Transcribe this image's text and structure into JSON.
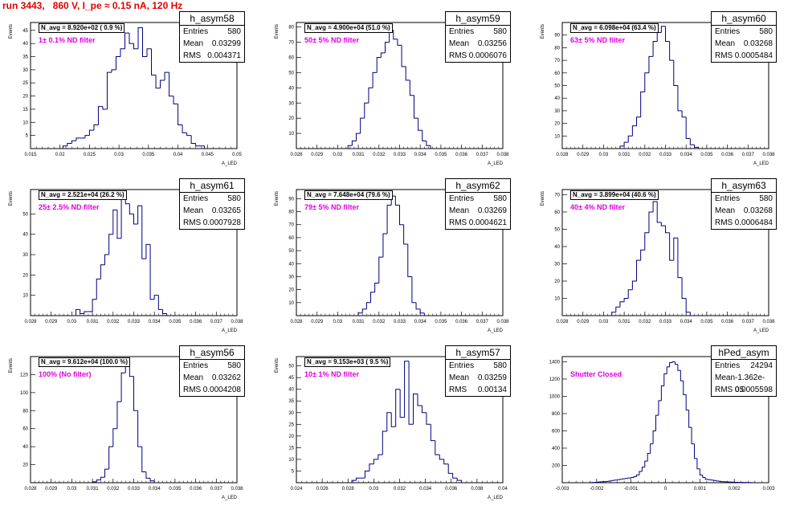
{
  "page": {
    "title": "run 3443,   860 V, I_pe ≈ 0.15 nA, 120 Hz"
  },
  "chart_data": [
    {
      "type": "bar",
      "name": "h_asym58",
      "stats": {
        "entries_label": "Entries",
        "entries": "580",
        "mean_label": "Mean",
        "mean": "0.03299",
        "rms_label": "RMS",
        "rms": "0.004371"
      },
      "n_avg": "N_avg = 8.920e+02 ( 0.9 %)",
      "note": "1± 0.1% ND filter",
      "xlabel": "A_LED",
      "ylabel": "Events",
      "xlim": [
        0.015,
        0.05
      ],
      "ylim": [
        0,
        48
      ],
      "xticks": [
        0.015,
        0.02,
        0.025,
        0.03,
        0.035,
        0.04,
        0.045,
        0.05
      ],
      "xtick_labels": [
        "0.015",
        "0.02",
        "0.025",
        "0.03",
        "0.035",
        "0.04",
        "0.045",
        "0.05"
      ],
      "yticks": [
        5,
        10,
        15,
        20,
        25,
        30,
        35,
        40,
        45
      ],
      "ytick_labels": [
        "5",
        "10",
        "15",
        "20",
        "25",
        "30",
        "35",
        "40",
        "45"
      ],
      "bin_start": 0.0205,
      "bin_width": 0.00075,
      "values": [
        1,
        2,
        3,
        4,
        4,
        5,
        7,
        9,
        16,
        15,
        29,
        30,
        35,
        38,
        44,
        40,
        38,
        46,
        35,
        38,
        28,
        23,
        26,
        29,
        20,
        17,
        9,
        6,
        5,
        2,
        1,
        1
      ]
    },
    {
      "type": "bar",
      "name": "h_asym59",
      "stats": {
        "entries_label": "Entries",
        "entries": "580",
        "mean_label": "Mean",
        "mean": "0.03256",
        "rms_label": "RMS",
        "rms": "0.0006076"
      },
      "n_avg": "N_avg = 4.900e+04 (51.0 %)",
      "note": "50± 5% ND filter",
      "xlabel": "A_LED",
      "ylabel": "Events",
      "xlim": [
        0.028,
        0.038
      ],
      "ylim": [
        0,
        83
      ],
      "xticks": [
        0.028,
        0.029,
        0.03,
        0.031,
        0.032,
        0.033,
        0.034,
        0.035,
        0.036,
        0.037,
        0.038
      ],
      "xtick_labels": [
        "0.028",
        "0.029",
        "0.03",
        "0.031",
        "0.032",
        "0.033",
        "0.034",
        "0.035",
        "0.036",
        "0.037",
        "0.038"
      ],
      "yticks": [
        10,
        20,
        30,
        40,
        50,
        60,
        70,
        80
      ],
      "ytick_labels": [
        "10",
        "20",
        "30",
        "40",
        "50",
        "60",
        "70",
        "80"
      ],
      "bin_start": 0.0305,
      "bin_width": 0.0002,
      "values": [
        2,
        5,
        10,
        20,
        30,
        40,
        50,
        60,
        63,
        70,
        78,
        72,
        68,
        54,
        45,
        35,
        20,
        12,
        5,
        2
      ]
    },
    {
      "type": "bar",
      "name": "h_asym60",
      "stats": {
        "entries_label": "Entries",
        "entries": "580",
        "mean_label": "Mean",
        "mean": "0.03268",
        "rms_label": "RMS",
        "rms": "0.0005484"
      },
      "n_avg": "N_avg = 6.098e+04 (63.4 %)",
      "note": "63± 5% ND filter",
      "xlabel": "A_LED",
      "ylabel": "Events",
      "xlim": [
        0.028,
        0.038
      ],
      "ylim": [
        0,
        100
      ],
      "xticks": [
        0.028,
        0.029,
        0.03,
        0.031,
        0.032,
        0.033,
        0.034,
        0.035,
        0.036,
        0.037,
        0.038
      ],
      "xtick_labels": [
        "0.028",
        "0.029",
        "0.03",
        "0.031",
        "0.032",
        "0.033",
        "0.034",
        "0.035",
        "0.036",
        "0.037",
        "0.038"
      ],
      "yticks": [
        10,
        20,
        30,
        40,
        50,
        60,
        70,
        80,
        90
      ],
      "ytick_labels": [
        "10",
        "20",
        "30",
        "40",
        "50",
        "60",
        "70",
        "80",
        "90"
      ],
      "bin_start": 0.0308,
      "bin_width": 0.0002,
      "values": [
        2,
        5,
        10,
        18,
        25,
        45,
        60,
        73,
        85,
        92,
        97,
        85,
        70,
        50,
        30,
        25,
        8,
        3,
        1
      ]
    },
    {
      "type": "bar",
      "name": "h_asym61",
      "stats": {
        "entries_label": "Entries",
        "entries": "580",
        "mean_label": "Mean",
        "mean": "0.03265",
        "rms_label": "RMS",
        "rms": "0.0007928"
      },
      "n_avg": "N_avg = 2.521e+04 (26.2 %)",
      "note": "25± 2.5% ND filter",
      "xlabel": "A_LED",
      "ylabel": "Events",
      "xlim": [
        0.028,
        0.038
      ],
      "ylim": [
        0,
        62
      ],
      "xticks": [
        0.028,
        0.029,
        0.03,
        0.031,
        0.032,
        0.033,
        0.034,
        0.035,
        0.036,
        0.037,
        0.038
      ],
      "xtick_labels": [
        "0.028",
        "0.029",
        "0.03",
        "0.031",
        "0.032",
        "0.033",
        "0.034",
        "0.035",
        "0.036",
        "0.037",
        "0.038"
      ],
      "yticks": [
        10,
        20,
        30,
        40,
        50
      ],
      "ytick_labels": [
        "10",
        "20",
        "30",
        "40",
        "50"
      ],
      "bin_start": 0.0302,
      "bin_width": 0.0002,
      "values": [
        3,
        1,
        2,
        2,
        8,
        18,
        25,
        30,
        40,
        52,
        38,
        58,
        55,
        50,
        45,
        54,
        28,
        35,
        8,
        10,
        3,
        1
      ]
    },
    {
      "type": "bar",
      "name": "h_asym62",
      "stats": {
        "entries_label": "Entries",
        "entries": "580",
        "mean_label": "Mean",
        "mean": "0.03269",
        "rms_label": "RMS",
        "rms": "0.0004621"
      },
      "n_avg": "N_avg = 7.648e+04 (79.6 %)",
      "note": "79± 5% ND filter",
      "xlabel": "A_LED",
      "ylabel": "Events",
      "xlim": [
        0.028,
        0.038
      ],
      "ylim": [
        0,
        97
      ],
      "xticks": [
        0.028,
        0.029,
        0.03,
        0.031,
        0.032,
        0.033,
        0.034,
        0.035,
        0.036,
        0.037,
        0.038
      ],
      "xtick_labels": [
        "0.028",
        "0.029",
        "0.03",
        "0.031",
        "0.032",
        "0.033",
        "0.034",
        "0.035",
        "0.036",
        "0.037",
        "0.038"
      ],
      "yticks": [
        10,
        20,
        30,
        40,
        50,
        60,
        70,
        80,
        90
      ],
      "ytick_labels": [
        "10",
        "20",
        "30",
        "40",
        "50",
        "60",
        "70",
        "80",
        "90"
      ],
      "bin_start": 0.031,
      "bin_width": 0.0002,
      "values": [
        2,
        5,
        10,
        18,
        25,
        45,
        63,
        85,
        92,
        85,
        70,
        55,
        30,
        10,
        5,
        2
      ]
    },
    {
      "type": "bar",
      "name": "h_asym63",
      "stats": {
        "entries_label": "Entries",
        "entries": "580",
        "mean_label": "Mean",
        "mean": "0.03268",
        "rms_label": "RMS",
        "rms": "0.0006484"
      },
      "n_avg": "N_avg = 3.899e+04 (40.6 %)",
      "note": "40± 4% ND filter",
      "xlabel": "A_LED",
      "ylabel": "Events",
      "xlim": [
        0.028,
        0.038
      ],
      "ylim": [
        0,
        73
      ],
      "xticks": [
        0.028,
        0.029,
        0.03,
        0.031,
        0.032,
        0.033,
        0.034,
        0.035,
        0.036,
        0.037,
        0.038
      ],
      "xtick_labels": [
        "0.028",
        "0.029",
        "0.03",
        "0.031",
        "0.032",
        "0.033",
        "0.034",
        "0.035",
        "0.036",
        "0.037",
        "0.038"
      ],
      "yticks": [
        10,
        20,
        30,
        40,
        50,
        60,
        70
      ],
      "ytick_labels": [
        "10",
        "20",
        "30",
        "40",
        "50",
        "60",
        "70"
      ],
      "bin_start": 0.0304,
      "bin_width": 0.0002,
      "values": [
        2,
        5,
        8,
        10,
        15,
        20,
        32,
        38,
        48,
        60,
        66,
        54,
        52,
        48,
        32,
        45,
        22,
        10,
        2
      ]
    },
    {
      "type": "bar",
      "name": "h_asym56",
      "stats": {
        "entries_label": "Entries",
        "entries": "580",
        "mean_label": "Mean",
        "mean": "0.03262",
        "rms_label": "RMS",
        "rms": "0.0004208"
      },
      "n_avg": "N_avg = 9.612e+04 (100.0 %)",
      "note": "100% (No filter)",
      "xlabel": "A_LED",
      "ylabel": "Events",
      "xlim": [
        0.028,
        0.038
      ],
      "ylim": [
        0,
        140
      ],
      "xticks": [
        0.028,
        0.029,
        0.03,
        0.031,
        0.032,
        0.033,
        0.034,
        0.035,
        0.036,
        0.037,
        0.038
      ],
      "xtick_labels": [
        "0.028",
        "0.029",
        "0.03",
        "0.031",
        "0.032",
        "0.033",
        "0.034",
        "0.035",
        "0.036",
        "0.037",
        "0.038"
      ],
      "yticks": [
        20,
        40,
        60,
        80,
        100,
        120
      ],
      "ytick_labels": [
        "20",
        "40",
        "60",
        "80",
        "100",
        "120"
      ],
      "bin_start": 0.031,
      "bin_width": 0.0002,
      "values": [
        1,
        3,
        6,
        15,
        40,
        60,
        90,
        122,
        134,
        118,
        80,
        40,
        12,
        5,
        2
      ]
    },
    {
      "type": "bar",
      "name": "h_asym57",
      "stats": {
        "entries_label": "Entries",
        "entries": "580",
        "mean_label": "Mean",
        "mean": "0.03259",
        "rms_label": "RMS",
        "rms": "0.00134"
      },
      "n_avg": "N_avg = 9.153e+03 ( 9.5 %)",
      "note": "10± 1% ND filter",
      "xlabel": "A_LED",
      "ylabel": "Events",
      "xlim": [
        0.024,
        0.04
      ],
      "ylim": [
        0,
        54
      ],
      "xticks": [
        0.024,
        0.026,
        0.028,
        0.03,
        0.032,
        0.034,
        0.036,
        0.038,
        0.04
      ],
      "xtick_labels": [
        "0.024",
        "0.026",
        "0.028",
        "0.03",
        "0.032",
        "0.034",
        "0.036",
        "0.038",
        "0.04"
      ],
      "yticks": [
        5,
        10,
        15,
        20,
        25,
        30,
        35,
        40,
        45,
        50
      ],
      "ytick_labels": [
        "5",
        "10",
        "15",
        "20",
        "25",
        "30",
        "35",
        "40",
        "45",
        "50"
      ],
      "bin_start": 0.0283,
      "bin_width": 0.00034,
      "values": [
        1,
        2,
        2,
        5,
        8,
        10,
        12,
        22,
        30,
        24,
        40,
        28,
        52,
        25,
        38,
        33,
        30,
        25,
        18,
        12,
        10,
        8,
        4,
        2,
        1
      ]
    },
    {
      "type": "bar",
      "name": "hPed_asym",
      "stats": {
        "entries_label": "Entries",
        "entries": "24294",
        "mean_label": "Mean",
        "mean": "-1.362e-05",
        "rms_label": "RMS",
        "rms": "0.0005598"
      },
      "n_avg": "",
      "note": "Shutter Closed",
      "xlabel": "",
      "ylabel": "",
      "xlim": [
        -0.003,
        0.003
      ],
      "ylim": [
        0,
        1460
      ],
      "xticks": [
        -0.003,
        -0.002,
        -0.001,
        0,
        0.001,
        0.002,
        0.003
      ],
      "xtick_labels": [
        "-0.003",
        "-0.002",
        "-0.001",
        "0",
        "0.001",
        "0.002",
        "0.003"
      ],
      "yticks": [
        200,
        400,
        600,
        800,
        1000,
        1200,
        1400
      ],
      "ytick_labels": [
        "200",
        "400",
        "600",
        "800",
        "1000",
        "1200",
        "1400"
      ],
      "bin_start": -0.0022,
      "bin_width": 8e-05,
      "values": [
        2,
        3,
        5,
        8,
        10,
        12,
        15,
        20,
        25,
        30,
        35,
        40,
        45,
        50,
        55,
        60,
        70,
        90,
        130,
        180,
        250,
        340,
        450,
        600,
        780,
        950,
        1120,
        1260,
        1340,
        1390,
        1400,
        1370,
        1300,
        1180,
        1020,
        840,
        640,
        450,
        280,
        160,
        90,
        60,
        40,
        35,
        30,
        25,
        20,
        15,
        12,
        10,
        8,
        7,
        6,
        5,
        4,
        3,
        3,
        2,
        2,
        1
      ]
    }
  ]
}
